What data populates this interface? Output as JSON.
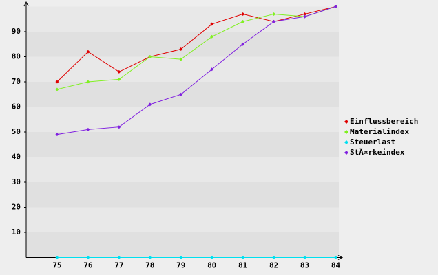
{
  "chart_data": {
    "type": "line",
    "categories": [
      "75",
      "76",
      "77",
      "78",
      "79",
      "80",
      "81",
      "82",
      "83",
      "84"
    ],
    "series": [
      {
        "name": "Einflussbereich",
        "color": "#e00000",
        "values": [
          70,
          82,
          74,
          80,
          83,
          93,
          97,
          94,
          97,
          100
        ]
      },
      {
        "name": "Materialindex",
        "color": "#80f020",
        "values": [
          67,
          70,
          71,
          80,
          79,
          88,
          94,
          97,
          96,
          100
        ]
      },
      {
        "name": "Steuerlast",
        "color": "#00e0f0",
        "values": [
          0,
          0,
          0,
          0,
          0,
          0,
          0,
          0,
          0,
          0
        ]
      },
      {
        "name": "StÃ¤rkeindex",
        "color": "#8020e0",
        "values": [
          49,
          51,
          52,
          61,
          65,
          75,
          85,
          94,
          96,
          100
        ]
      }
    ],
    "ylim": [
      0,
      100
    ],
    "yticks": [
      10,
      20,
      30,
      40,
      50,
      60,
      70,
      80,
      90
    ],
    "legend": "right"
  }
}
